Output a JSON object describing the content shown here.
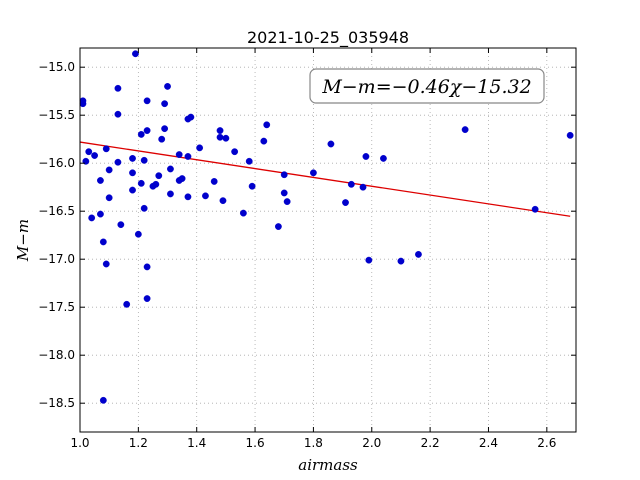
{
  "chart_data": {
    "type": "scatter",
    "title": "2021-10-25_035948",
    "xlabel": "airmass",
    "ylabel": "M−m",
    "xlim": [
      1.0,
      2.7
    ],
    "ylim": [
      -18.8,
      -14.8
    ],
    "y_inverted": true,
    "grid": true,
    "grid_style": "dotted",
    "x_ticks": [
      "1.0",
      "1.2",
      "1.4",
      "1.6",
      "1.8",
      "2.0",
      "2.2",
      "2.4",
      "2.6"
    ],
    "y_ticks": [
      "−15.0",
      "−15.5",
      "−16.0",
      "−16.5",
      "−17.0",
      "−17.5",
      "−18.0",
      "−18.5"
    ],
    "annotation": "M−m=−0.46χ−15.32",
    "colors": {
      "points": "#0000cc",
      "fit_line": "#dd0000",
      "grid": "#aaaaaa",
      "annotation_border": "#888888"
    },
    "fit": {
      "slope": -0.46,
      "intercept": -15.32,
      "x_range": [
        1.0,
        2.68
      ]
    },
    "points": [
      {
        "x": 1.01,
        "y": -15.35
      },
      {
        "x": 1.01,
        "y": -15.38
      },
      {
        "x": 1.02,
        "y": -15.98
      },
      {
        "x": 1.03,
        "y": -15.88
      },
      {
        "x": 1.04,
        "y": -16.57
      },
      {
        "x": 1.05,
        "y": -15.92
      },
      {
        "x": 1.07,
        "y": -16.18
      },
      {
        "x": 1.07,
        "y": -16.53
      },
      {
        "x": 1.08,
        "y": -18.47
      },
      {
        "x": 1.08,
        "y": -16.82
      },
      {
        "x": 1.09,
        "y": -17.05
      },
      {
        "x": 1.09,
        "y": -15.85
      },
      {
        "x": 1.1,
        "y": -16.36
      },
      {
        "x": 1.1,
        "y": -16.07
      },
      {
        "x": 1.13,
        "y": -15.99
      },
      {
        "x": 1.13,
        "y": -15.49
      },
      {
        "x": 1.13,
        "y": -15.22
      },
      {
        "x": 1.14,
        "y": -16.64
      },
      {
        "x": 1.16,
        "y": -17.47
      },
      {
        "x": 1.18,
        "y": -16.1
      },
      {
        "x": 1.18,
        "y": -16.28
      },
      {
        "x": 1.18,
        "y": -15.95
      },
      {
        "x": 1.19,
        "y": -14.86
      },
      {
        "x": 1.2,
        "y": -16.74
      },
      {
        "x": 1.21,
        "y": -16.21
      },
      {
        "x": 1.21,
        "y": -15.7
      },
      {
        "x": 1.22,
        "y": -15.97
      },
      {
        "x": 1.22,
        "y": -16.47
      },
      {
        "x": 1.23,
        "y": -17.08
      },
      {
        "x": 1.23,
        "y": -17.41
      },
      {
        "x": 1.23,
        "y": -15.66
      },
      {
        "x": 1.23,
        "y": -15.35
      },
      {
        "x": 1.25,
        "y": -16.24
      },
      {
        "x": 1.26,
        "y": -16.22
      },
      {
        "x": 1.27,
        "y": -16.13
      },
      {
        "x": 1.28,
        "y": -15.75
      },
      {
        "x": 1.29,
        "y": -15.64
      },
      {
        "x": 1.29,
        "y": -15.38
      },
      {
        "x": 1.3,
        "y": -15.2
      },
      {
        "x": 1.31,
        "y": -16.06
      },
      {
        "x": 1.31,
        "y": -16.32
      },
      {
        "x": 1.34,
        "y": -16.18
      },
      {
        "x": 1.34,
        "y": -15.91
      },
      {
        "x": 1.35,
        "y": -16.16
      },
      {
        "x": 1.37,
        "y": -16.35
      },
      {
        "x": 1.37,
        "y": -15.93
      },
      {
        "x": 1.37,
        "y": -15.54
      },
      {
        "x": 1.38,
        "y": -15.52
      },
      {
        "x": 1.41,
        "y": -15.84
      },
      {
        "x": 1.43,
        "y": -16.34
      },
      {
        "x": 1.46,
        "y": -16.19
      },
      {
        "x": 1.48,
        "y": -15.66
      },
      {
        "x": 1.48,
        "y": -15.73
      },
      {
        "x": 1.49,
        "y": -16.39
      },
      {
        "x": 1.5,
        "y": -15.74
      },
      {
        "x": 1.53,
        "y": -15.88
      },
      {
        "x": 1.56,
        "y": -16.52
      },
      {
        "x": 1.58,
        "y": -15.98
      },
      {
        "x": 1.59,
        "y": -16.24
      },
      {
        "x": 1.63,
        "y": -15.77
      },
      {
        "x": 1.64,
        "y": -15.6
      },
      {
        "x": 1.68,
        "y": -16.66
      },
      {
        "x": 1.7,
        "y": -16.31
      },
      {
        "x": 1.7,
        "y": -16.12
      },
      {
        "x": 1.71,
        "y": -16.4
      },
      {
        "x": 1.8,
        "y": -16.1
      },
      {
        "x": 1.86,
        "y": -15.8
      },
      {
        "x": 1.91,
        "y": -16.41
      },
      {
        "x": 1.93,
        "y": -16.22
      },
      {
        "x": 1.97,
        "y": -16.25
      },
      {
        "x": 1.98,
        "y": -15.93
      },
      {
        "x": 1.99,
        "y": -17.01
      },
      {
        "x": 2.04,
        "y": -15.95
      },
      {
        "x": 2.1,
        "y": -17.02
      },
      {
        "x": 2.16,
        "y": -16.95
      },
      {
        "x": 2.32,
        "y": -15.65
      },
      {
        "x": 2.56,
        "y": -16.48
      },
      {
        "x": 2.68,
        "y": -15.71
      }
    ]
  }
}
